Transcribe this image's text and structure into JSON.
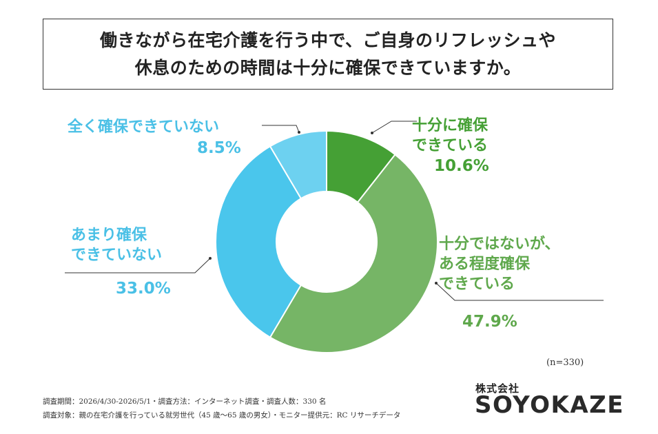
{
  "title": {
    "line1": "働きながら在宅介護を行う中で、ご自身のリフレッシュや",
    "line2": "休息のための時間は十分に確保できていますか。"
  },
  "chart_data": {
    "type": "donut",
    "total_n": "(n=330)",
    "segments": [
      {
        "label_lines": [
          "十分に確保",
          "できている"
        ],
        "value": 10.6,
        "pct_text": "10.6%",
        "color": "#45a035"
      },
      {
        "label_lines": [
          "十分ではないが、",
          "ある程度確保",
          "できている"
        ],
        "value": 47.9,
        "pct_text": "47.9%",
        "color": "#76b566"
      },
      {
        "label_lines": [
          "あまり確保",
          "できていない"
        ],
        "value": 33.0,
        "pct_text": "33.0%",
        "color": "#4ac6ec"
      },
      {
        "label_lines": [
          "全く確保できていない"
        ],
        "value": 8.5,
        "pct_text": "8.5%",
        "color": "#6dd1f0"
      }
    ]
  },
  "footnotes": {
    "line1": "調査期間：2026/4/30-2026/5/1・調査方法：インターネット調査・調査人数：330 名",
    "line2": "調査対象：親の在宅介護を行っている就労世代（45 歳〜65 歳の男女）・モニター提供元：RC リサーチデータ"
  },
  "brand": {
    "company": "株式会社",
    "logo": "SOYOKAZE"
  },
  "colors": {
    "green_text": "#45a035",
    "light_green_text": "#5fa84c",
    "blue_text": "#4ac0e6",
    "leader_line": "#333333"
  }
}
